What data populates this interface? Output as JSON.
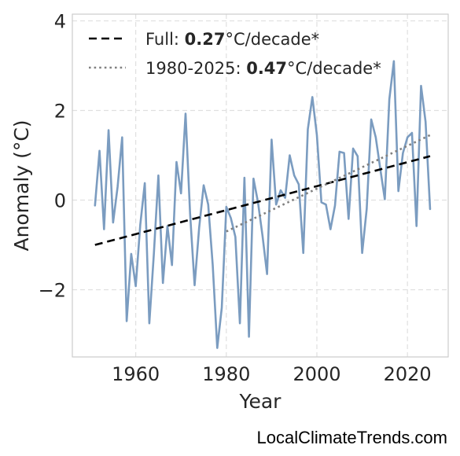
{
  "chart_data": {
    "type": "line",
    "xlabel": "Year",
    "ylabel": "Anomaly (°C)",
    "xlim": [
      1946,
      2029
    ],
    "ylim": [
      -3.5,
      4.15
    ],
    "xticks": [
      1960,
      1980,
      2000,
      2020
    ],
    "yticks": [
      -2,
      0,
      2,
      4
    ],
    "ytick_labels": [
      "−2",
      "0",
      "2",
      "4"
    ],
    "grid": true,
    "legend_position": "top-left",
    "series": [
      {
        "style": "solid",
        "color": "#7b9cc0",
        "x": [
          1951,
          1952,
          1953,
          1954,
          1955,
          1956,
          1957,
          1958,
          1959,
          1960,
          1961,
          1962,
          1963,
          1964,
          1965,
          1966,
          1967,
          1968,
          1969,
          1970,
          1971,
          1972,
          1973,
          1974,
          1975,
          1976,
          1977,
          1978,
          1979,
          1980,
          1981,
          1982,
          1983,
          1984,
          1985,
          1986,
          1987,
          1988,
          1989,
          1990,
          1991,
          1992,
          1993,
          1994,
          1995,
          1996,
          1997,
          1998,
          1999,
          2000,
          2001,
          2002,
          2003,
          2004,
          2005,
          2006,
          2007,
          2008,
          2009,
          2010,
          2011,
          2012,
          2013,
          2014,
          2015,
          2016,
          2017,
          2018,
          2019,
          2020,
          2021,
          2022,
          2023,
          2024,
          2025
        ],
        "y": [
          -0.12,
          1.1,
          -0.65,
          1.56,
          -0.5,
          0.3,
          1.4,
          -2.7,
          -1.2,
          -1.92,
          -0.55,
          0.38,
          -2.75,
          -1.2,
          0.55,
          -1.85,
          -0.58,
          -1.45,
          0.85,
          0.15,
          1.93,
          -0.3,
          -1.9,
          -0.62,
          0.33,
          -0.1,
          -1.45,
          -3.3,
          -2.4,
          -0.15,
          -0.4,
          -0.82,
          -2.75,
          0.5,
          -3.05,
          0.48,
          -0.05,
          -0.8,
          -1.65,
          1.35,
          -0.1,
          0.22,
          0.05,
          1.0,
          0.55,
          0.35,
          -1.18,
          1.58,
          2.3,
          1.45,
          -0.05,
          -0.1,
          -0.65,
          -0.12,
          1.08,
          1.05,
          -0.42,
          1.15,
          0.98,
          -1.18,
          -0.2,
          1.8,
          1.4,
          0.7,
          0.02,
          2.25,
          3.1,
          0.2,
          1.05,
          1.4,
          1.5,
          -0.58,
          2.55,
          1.75,
          -0.2
        ]
      },
      {
        "name": "Full: ",
        "rate": "0.27",
        "unit": "°C/decade*",
        "style": "dashed",
        "color": "#000000",
        "x": [
          1951,
          2025
        ],
        "y": [
          -1.0,
          0.98
        ]
      },
      {
        "name": "1980-2025: ",
        "rate": "0.47",
        "unit": "°C/decade*",
        "style": "dotted",
        "color": "#808080",
        "x": [
          1980,
          2025
        ],
        "y": [
          -0.7,
          1.45
        ]
      }
    ]
  },
  "credit": "LocalClimateTrends.com"
}
